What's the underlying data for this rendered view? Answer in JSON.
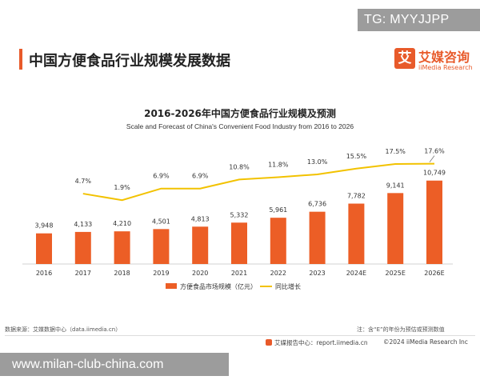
{
  "watermark_top": "TG: MYYJJPP",
  "watermark_bottom": "www.milan-club-china.com",
  "page_title": "中国方便食品行业规模发展数据",
  "brand": {
    "mark": "艾",
    "name_cn": "艾媒咨询",
    "name_en": "iiMedia Research"
  },
  "footer": {
    "source": "数据来源：艾媒数据中心（data.iimedia.cn）",
    "note": "注：含“E”的年份为预估或预测数值",
    "report": "艾媒报告中心：report.iimedia.cn",
    "copyright": "©2024  iiMedia Research Inc"
  },
  "colors": {
    "bar": "#ec5e26",
    "line": "#f2c200",
    "accent": "#e85a2a",
    "axis": "#d0d0d0"
  },
  "chart_data": {
    "type": "bar",
    "title": "2016-2026年中国方便食品行业规模及预测",
    "subtitle": "Scale and Forecast of China's Convenient Food Industry from 2016 to 2026",
    "categories": [
      "2016",
      "2017",
      "2018",
      "2019",
      "2020",
      "2021",
      "2022",
      "2023",
      "2024E",
      "2025E",
      "2026E"
    ],
    "series": [
      {
        "name": "方便食品市场规模（亿元）",
        "type": "bar",
        "values": [
          3948,
          4133,
          4210,
          4501,
          4813,
          5332,
          5961,
          6736,
          7782,
          9141,
          10749
        ],
        "labels": [
          "3,948",
          "4,133",
          "4,210",
          "4,501",
          "4,813",
          "5,332",
          "5,961",
          "6,736",
          "7,782",
          "9,141",
          "10,749"
        ]
      },
      {
        "name": "同比增长",
        "type": "line",
        "unit": "%",
        "values": [
          null,
          4.7,
          1.9,
          6.9,
          6.9,
          10.8,
          11.8,
          13.0,
          15.5,
          17.5,
          17.6
        ],
        "labels": [
          "",
          "4.7%",
          "1.9%",
          "6.9%",
          "6.9%",
          "10.8%",
          "11.8%",
          "13.0%",
          "15.5%",
          "17.5%",
          "17.6%"
        ]
      }
    ],
    "grid": false,
    "legend_position": "bottom"
  }
}
